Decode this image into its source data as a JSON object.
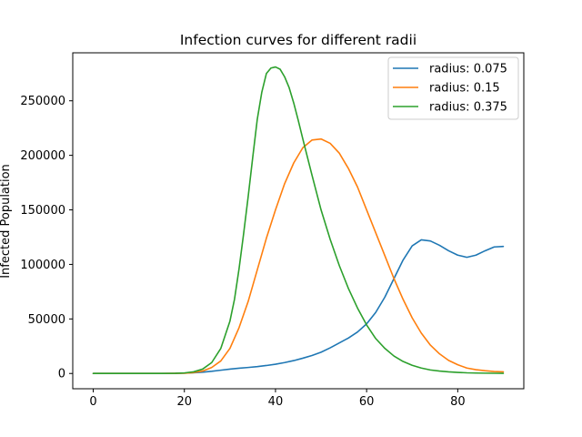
{
  "chart_data": {
    "type": "line",
    "title": "Infection curves for different radii",
    "xlabel": "",
    "ylabel": "Infected Population",
    "xlim": [
      -4.5,
      94.5
    ],
    "ylim": [
      -14000,
      294000
    ],
    "xticks": [
      0,
      20,
      40,
      60,
      80
    ],
    "yticks": [
      0,
      50000,
      100000,
      150000,
      200000,
      250000
    ],
    "grid": false,
    "legend_position": "upper right",
    "series": [
      {
        "name": "radius: 0.075",
        "color": "#1f77b4",
        "x": [
          0,
          5,
          10,
          15,
          18,
          20,
          22,
          24,
          26,
          28,
          30,
          32,
          34,
          36,
          38,
          40,
          42,
          44,
          46,
          48,
          50,
          52,
          54,
          56,
          58,
          60,
          62,
          64,
          66,
          68,
          70,
          72,
          74,
          76,
          78,
          80,
          82,
          84,
          86,
          88,
          90
        ],
        "y": [
          0,
          0,
          0,
          0,
          100,
          300,
          600,
          1200,
          2000,
          3000,
          4000,
          4800,
          5500,
          6300,
          7300,
          8500,
          10000,
          11800,
          14000,
          16500,
          19500,
          23500,
          28000,
          32500,
          38000,
          45500,
          56000,
          70000,
          87000,
          104000,
          117000,
          122500,
          121500,
          117500,
          112500,
          108500,
          106500,
          108500,
          112500,
          116000,
          116500
        ]
      },
      {
        "name": "radius: 0.15",
        "color": "#ff7f0e",
        "x": [
          0,
          5,
          10,
          15,
          18,
          20,
          22,
          24,
          26,
          28,
          30,
          32,
          34,
          36,
          38,
          40,
          42,
          44,
          46,
          48,
          50,
          52,
          54,
          56,
          58,
          60,
          62,
          64,
          66,
          68,
          70,
          72,
          74,
          76,
          78,
          80,
          82,
          84,
          86,
          88,
          90
        ],
        "y": [
          0,
          0,
          0,
          0,
          100,
          200,
          800,
          2200,
          5500,
          11500,
          23000,
          42000,
          66000,
          95000,
          124000,
          150000,
          174000,
          193000,
          207000,
          214000,
          215000,
          211000,
          202000,
          188000,
          171000,
          150000,
          129000,
          108000,
          87000,
          68000,
          51000,
          37000,
          26000,
          18000,
          12000,
          8000,
          5000,
          3500,
          2500,
          1800,
          1500
        ]
      },
      {
        "name": "radius: 0.375",
        "color": "#2ca02c",
        "x": [
          0,
          5,
          10,
          15,
          18,
          20,
          22,
          24,
          26,
          28,
          30,
          31,
          32,
          33,
          34,
          35,
          36,
          37,
          38,
          39,
          40,
          41,
          42,
          43,
          44,
          45,
          46,
          48,
          50,
          52,
          54,
          56,
          58,
          60,
          62,
          64,
          66,
          68,
          70,
          72,
          74,
          76,
          78,
          80,
          82,
          84,
          86,
          88,
          90
        ],
        "y": [
          0,
          0,
          0,
          0,
          100,
          500,
          1500,
          4000,
          10000,
          23000,
          48000,
          68000,
          96000,
          128000,
          162000,
          198000,
          233000,
          258000,
          275000,
          280000,
          281000,
          279000,
          272000,
          262000,
          248000,
          232000,
          215000,
          182000,
          150000,
          123000,
          99000,
          78000,
          60000,
          44500,
          32000,
          23000,
          16000,
          11000,
          7500,
          5000,
          3200,
          2200,
          1500,
          1000,
          600,
          400,
          300,
          200,
          100
        ]
      }
    ]
  }
}
